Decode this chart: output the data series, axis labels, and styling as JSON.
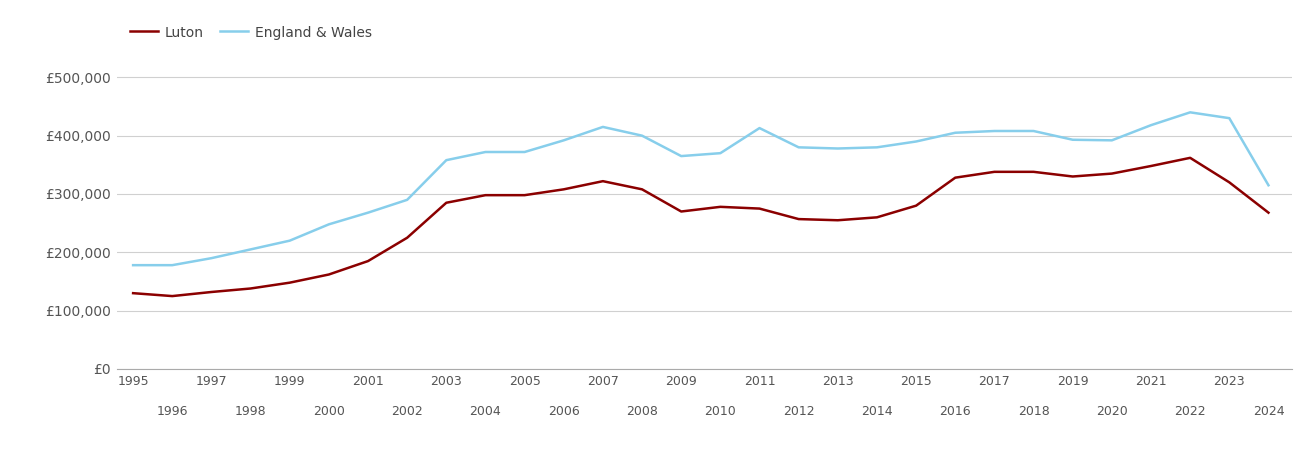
{
  "years": [
    1995,
    1996,
    1997,
    1998,
    1999,
    2000,
    2001,
    2002,
    2003,
    2004,
    2005,
    2006,
    2007,
    2008,
    2009,
    2010,
    2011,
    2012,
    2013,
    2014,
    2015,
    2016,
    2017,
    2018,
    2019,
    2020,
    2021,
    2022,
    2023,
    2024
  ],
  "luton": [
    130000,
    125000,
    132000,
    138000,
    148000,
    162000,
    185000,
    225000,
    285000,
    298000,
    298000,
    308000,
    322000,
    308000,
    270000,
    278000,
    275000,
    257000,
    255000,
    260000,
    280000,
    328000,
    338000,
    338000,
    330000,
    335000,
    348000,
    362000,
    320000,
    268000
  ],
  "england_wales": [
    178000,
    178000,
    190000,
    205000,
    220000,
    248000,
    268000,
    290000,
    358000,
    372000,
    372000,
    392000,
    415000,
    400000,
    365000,
    370000,
    413000,
    380000,
    378000,
    380000,
    390000,
    405000,
    408000,
    408000,
    393000,
    392000,
    418000,
    440000,
    430000,
    315000
  ],
  "luton_color": "#8b0000",
  "ew_color": "#87ceeb",
  "bg_color": "#ffffff",
  "grid_color": "#d0d0d0",
  "luton_label": "Luton",
  "ew_label": "England & Wales",
  "ylim": [
    0,
    540000
  ],
  "yticks": [
    0,
    100000,
    200000,
    300000,
    400000,
    500000
  ],
  "ytick_labels": [
    "£0",
    "£100,000",
    "£200,000",
    "£300,000",
    "£400,000",
    "£500,000"
  ],
  "line_width": 1.8,
  "xlim_left": 1994.6,
  "xlim_right": 2024.6
}
